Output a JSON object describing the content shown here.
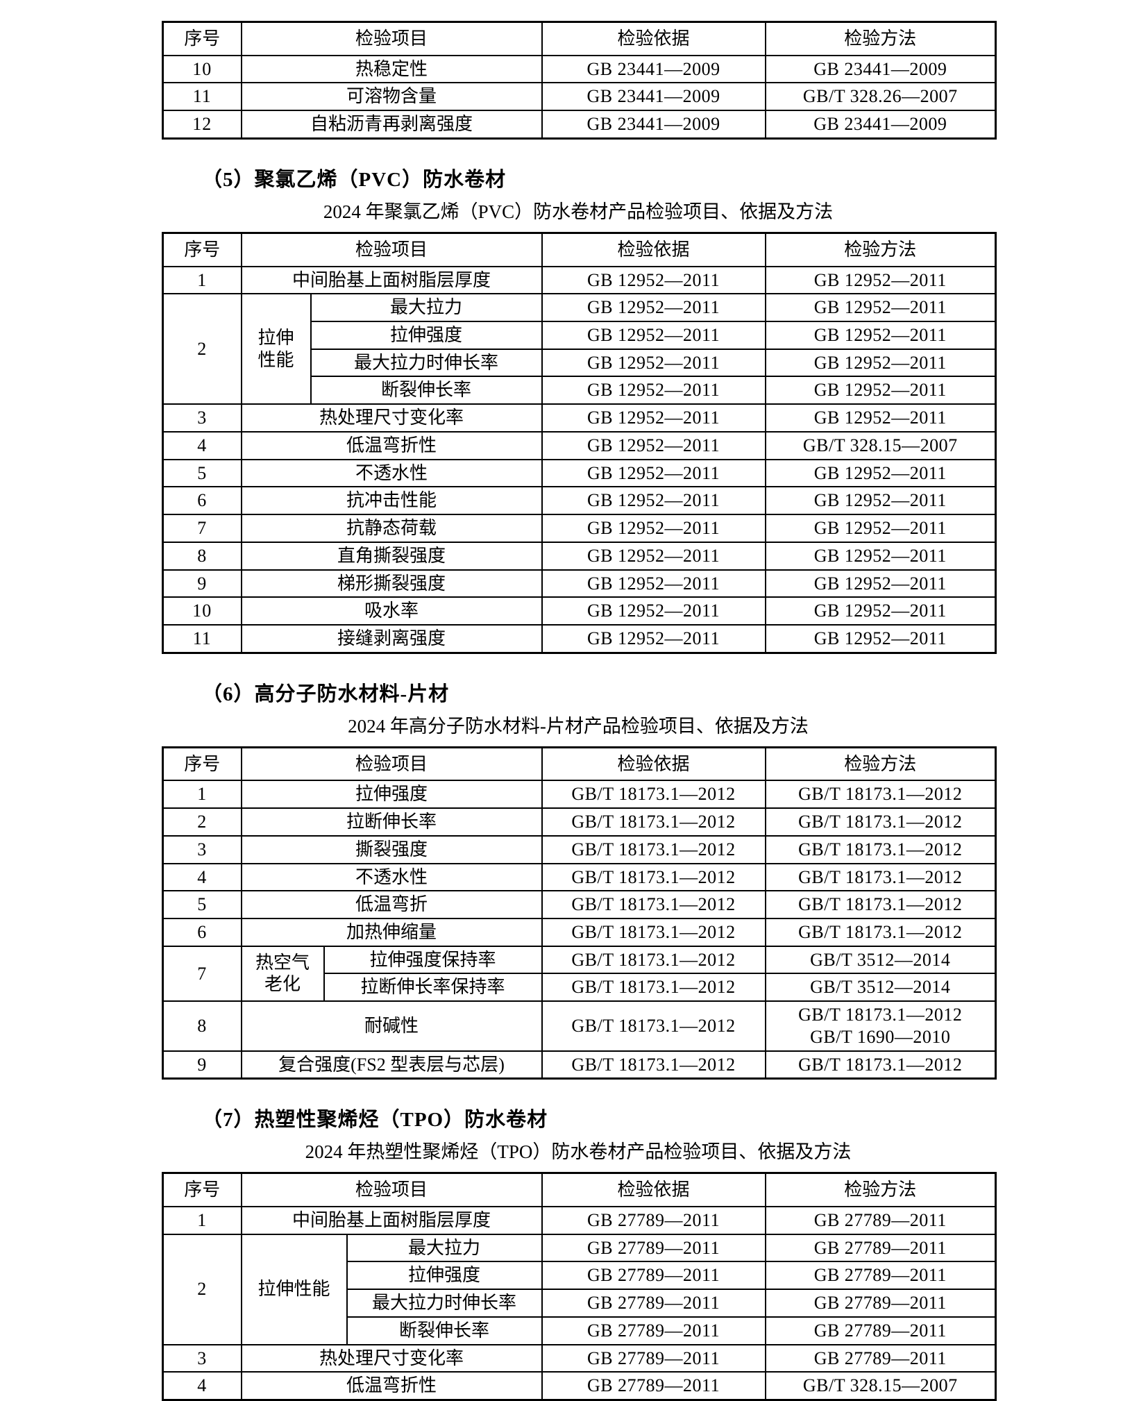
{
  "page": {
    "kind": "inspection-standards-document",
    "colors": {
      "background": "#ffffff",
      "text": "#000000",
      "border": "#000000"
    }
  },
  "sections": [
    {
      "heading": "（5）聚氯乙烯（PVC）防水卷材",
      "subtitle": "2024 年聚氯乙烯（PVC）防水卷材产品检验项目、依据及方法"
    },
    {
      "heading": "（6）高分子防水材料-片材",
      "subtitle": "2024 年高分子防水材料-片材产品检验项目、依据及方法"
    },
    {
      "heading": "（7）热塑性聚烯烃（TPO）防水卷材",
      "subtitle": "2024 年热塑性聚烯烃（TPO）防水卷材产品检验项目、依据及方法"
    }
  ],
  "tables": [
    {
      "name": "continued-table",
      "rows": [
        {
          "header": true,
          "cells": [
            {
              "t": "序号"
            },
            {
              "t": "检验项目",
              "cs": 2
            },
            {
              "t": "检验依据"
            },
            {
              "t": "检验方法"
            }
          ]
        },
        {
          "cells": [
            {
              "t": "10",
              "num": true
            },
            {
              "t": "热稳定性",
              "cs": 2
            },
            {
              "t": "GB 23441—2009"
            },
            {
              "t": "GB 23441—2009"
            }
          ]
        },
        {
          "cells": [
            {
              "t": "11",
              "num": true
            },
            {
              "t": "可溶物含量",
              "cs": 2
            },
            {
              "t": "GB 23441—2009"
            },
            {
              "t": "GB/T 328.26—2007"
            }
          ]
        },
        {
          "cells": [
            {
              "t": "12",
              "num": true
            },
            {
              "t": "自粘沥青再剥离强度",
              "cs": 2
            },
            {
              "t": "GB 23441—2009"
            },
            {
              "t": "GB 23441—2009"
            }
          ]
        }
      ]
    },
    {
      "name": "pvc-table",
      "rows": [
        {
          "header": true,
          "cells": [
            {
              "t": "序号"
            },
            {
              "t": "检验项目",
              "cs": 2
            },
            {
              "t": "检验依据"
            },
            {
              "t": "检验方法"
            }
          ]
        },
        {
          "cells": [
            {
              "t": "1",
              "num": true
            },
            {
              "t": "中间胎基上面树脂层厚度",
              "cs": 2
            },
            {
              "t": "GB 12952—2011"
            },
            {
              "t": "GB 12952—2011"
            }
          ]
        },
        {
          "cells": [
            {
              "t": "2",
              "num": true,
              "rs": 4
            },
            {
              "t": [
                "拉伸",
                "性能"
              ],
              "rs": 4
            },
            {
              "t": "最大拉力"
            },
            {
              "t": "GB 12952—2011"
            },
            {
              "t": "GB 12952—2011"
            }
          ]
        },
        {
          "cells": [
            {
              "t": "拉伸强度"
            },
            {
              "t": "GB 12952—2011"
            },
            {
              "t": "GB 12952—2011"
            }
          ]
        },
        {
          "cells": [
            {
              "t": "最大拉力时伸长率"
            },
            {
              "t": "GB 12952—2011"
            },
            {
              "t": "GB 12952—2011"
            }
          ]
        },
        {
          "cells": [
            {
              "t": "断裂伸长率"
            },
            {
              "t": "GB 12952—2011"
            },
            {
              "t": "GB 12952—2011"
            }
          ]
        },
        {
          "cells": [
            {
              "t": "3",
              "num": true
            },
            {
              "t": "热处理尺寸变化率",
              "cs": 2
            },
            {
              "t": "GB 12952—2011"
            },
            {
              "t": "GB 12952—2011"
            }
          ]
        },
        {
          "cells": [
            {
              "t": "4",
              "num": true
            },
            {
              "t": "低温弯折性",
              "cs": 2
            },
            {
              "t": "GB 12952—2011"
            },
            {
              "t": "GB/T 328.15—2007"
            }
          ]
        },
        {
          "cells": [
            {
              "t": "5",
              "num": true
            },
            {
              "t": "不透水性",
              "cs": 2
            },
            {
              "t": "GB 12952—2011"
            },
            {
              "t": "GB 12952—2011"
            }
          ]
        },
        {
          "cells": [
            {
              "t": "6",
              "num": true
            },
            {
              "t": "抗冲击性能",
              "cs": 2
            },
            {
              "t": "GB 12952—2011"
            },
            {
              "t": "GB 12952—2011"
            }
          ]
        },
        {
          "cells": [
            {
              "t": "7",
              "num": true
            },
            {
              "t": "抗静态荷载",
              "cs": 2
            },
            {
              "t": "GB 12952—2011"
            },
            {
              "t": "GB 12952—2011"
            }
          ]
        },
        {
          "cells": [
            {
              "t": "8",
              "num": true
            },
            {
              "t": "直角撕裂强度",
              "cs": 2
            },
            {
              "t": "GB 12952—2011"
            },
            {
              "t": "GB 12952—2011"
            }
          ]
        },
        {
          "cells": [
            {
              "t": "9",
              "num": true
            },
            {
              "t": "梯形撕裂强度",
              "cs": 2
            },
            {
              "t": "GB 12952—2011"
            },
            {
              "t": "GB 12952—2011"
            }
          ]
        },
        {
          "cells": [
            {
              "t": "10",
              "num": true
            },
            {
              "t": "吸水率",
              "cs": 2
            },
            {
              "t": "GB 12952—2011"
            },
            {
              "t": "GB 12952—2011"
            }
          ]
        },
        {
          "cells": [
            {
              "t": "11",
              "num": true
            },
            {
              "t": "接缝剥离强度",
              "cs": 2
            },
            {
              "t": "GB 12952—2011"
            },
            {
              "t": "GB 12952—2011"
            }
          ]
        }
      ]
    },
    {
      "name": "polymer-sheet-table",
      "rows": [
        {
          "header": true,
          "cells": [
            {
              "t": "序号"
            },
            {
              "t": "检验项目",
              "cs": 2
            },
            {
              "t": "检验依据"
            },
            {
              "t": "检验方法"
            }
          ]
        },
        {
          "cells": [
            {
              "t": "1",
              "num": true
            },
            {
              "t": "拉伸强度",
              "cs": 2
            },
            {
              "t": "GB/T 18173.1—2012"
            },
            {
              "t": "GB/T 18173.1—2012"
            }
          ]
        },
        {
          "cells": [
            {
              "t": "2",
              "num": true
            },
            {
              "t": "拉断伸长率",
              "cs": 2
            },
            {
              "t": "GB/T 18173.1—2012"
            },
            {
              "t": "GB/T 18173.1—2012"
            }
          ]
        },
        {
          "cells": [
            {
              "t": "3",
              "num": true
            },
            {
              "t": "撕裂强度",
              "cs": 2
            },
            {
              "t": "GB/T 18173.1—2012"
            },
            {
              "t": "GB/T 18173.1—2012"
            }
          ]
        },
        {
          "cells": [
            {
              "t": "4",
              "num": true
            },
            {
              "t": "不透水性",
              "cs": 2
            },
            {
              "t": "GB/T 18173.1—2012"
            },
            {
              "t": "GB/T 18173.1—2012"
            }
          ]
        },
        {
          "cells": [
            {
              "t": "5",
              "num": true
            },
            {
              "t": "低温弯折",
              "cs": 2
            },
            {
              "t": "GB/T 18173.1—2012"
            },
            {
              "t": "GB/T 18173.1—2012"
            }
          ]
        },
        {
          "cells": [
            {
              "t": "6",
              "num": true
            },
            {
              "t": "加热伸缩量",
              "cs": 2
            },
            {
              "t": "GB/T 18173.1—2012"
            },
            {
              "t": "GB/T 18173.1—2012"
            }
          ]
        },
        {
          "cells": [
            {
              "t": "7",
              "num": true,
              "rs": 2
            },
            {
              "t": [
                "热空气",
                "老化"
              ],
              "rs": 2
            },
            {
              "t": "拉伸强度保持率"
            },
            {
              "t": "GB/T 18173.1—2012"
            },
            {
              "t": "GB/T 3512—2014"
            }
          ]
        },
        {
          "cells": [
            {
              "t": "拉断伸长率保持率"
            },
            {
              "t": "GB/T 18173.1—2012"
            },
            {
              "t": "GB/T 3512—2014"
            }
          ]
        },
        {
          "cells": [
            {
              "t": "8",
              "num": true
            },
            {
              "t": "耐碱性",
              "cs": 2
            },
            {
              "t": "GB/T 18173.1—2012"
            },
            {
              "t": [
                "GB/T 18173.1—2012",
                "GB/T 1690—2010"
              ]
            }
          ]
        },
        {
          "cells": [
            {
              "t": "9",
              "num": true
            },
            {
              "t": "复合强度(FS2 型表层与芯层)",
              "cs": 2
            },
            {
              "t": "GB/T 18173.1—2012"
            },
            {
              "t": "GB/T 18173.1—2012"
            }
          ]
        }
      ]
    },
    {
      "name": "tpo-table",
      "rows": [
        {
          "header": true,
          "cells": [
            {
              "t": "序号"
            },
            {
              "t": "检验项目",
              "cs": 2
            },
            {
              "t": "检验依据"
            },
            {
              "t": "检验方法"
            }
          ]
        },
        {
          "cells": [
            {
              "t": "1",
              "num": true
            },
            {
              "t": "中间胎基上面树脂层厚度",
              "cs": 2
            },
            {
              "t": "GB 27789—2011"
            },
            {
              "t": "GB 27789—2011"
            }
          ]
        },
        {
          "cells": [
            {
              "t": "2",
              "num": true,
              "rs": 4
            },
            {
              "t": "拉伸性能",
              "rs": 4
            },
            {
              "t": "最大拉力"
            },
            {
              "t": "GB 27789—2011"
            },
            {
              "t": "GB 27789—2011"
            }
          ]
        },
        {
          "cells": [
            {
              "t": "拉伸强度"
            },
            {
              "t": "GB 27789—2011"
            },
            {
              "t": "GB 27789—2011"
            }
          ]
        },
        {
          "cells": [
            {
              "t": "最大拉力时伸长率"
            },
            {
              "t": "GB 27789—2011"
            },
            {
              "t": "GB 27789—2011"
            }
          ]
        },
        {
          "cells": [
            {
              "t": "断裂伸长率"
            },
            {
              "t": "GB 27789—2011"
            },
            {
              "t": "GB 27789—2011"
            }
          ]
        },
        {
          "cells": [
            {
              "t": "3",
              "num": true
            },
            {
              "t": "热处理尺寸变化率",
              "cs": 2
            },
            {
              "t": "GB 27789—2011"
            },
            {
              "t": "GB 27789—2011"
            }
          ]
        },
        {
          "cells": [
            {
              "t": "4",
              "num": true
            },
            {
              "t": "低温弯折性",
              "cs": 2
            },
            {
              "t": "GB 27789—2011"
            },
            {
              "t": "GB/T 328.15—2007"
            }
          ]
        }
      ]
    }
  ]
}
